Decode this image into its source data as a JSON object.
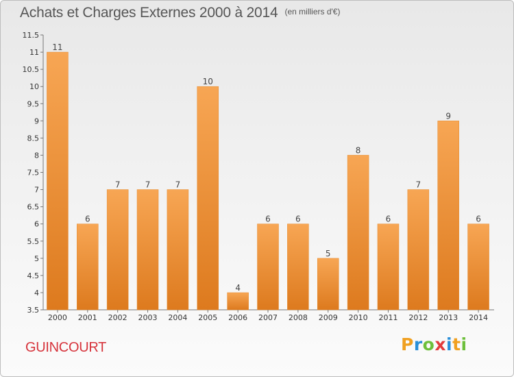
{
  "header": {
    "title": "Achats et Charges Externes 2000 à 2014",
    "subtitle": "(en milliers d'€)"
  },
  "footer": {
    "commune": "GUINCOURT",
    "logo_text": "Proxiti"
  },
  "colors": {
    "bar_top": "#f7a654",
    "bar_bottom": "#dd7a1e",
    "commune_text": "#d6333b"
  },
  "chart_data": {
    "type": "bar",
    "title": "Achats et Charges Externes 2000 à 2014",
    "subtitle": "(en milliers d'€)",
    "xlabel": "",
    "ylabel": "",
    "categories": [
      "2000",
      "2001",
      "2002",
      "2003",
      "2004",
      "2005",
      "2006",
      "2007",
      "2008",
      "2009",
      "2010",
      "2011",
      "2012",
      "2013",
      "2014"
    ],
    "values": [
      11,
      6,
      7,
      7,
      7,
      10,
      4,
      6,
      6,
      5,
      8,
      6,
      7,
      9,
      6
    ],
    "ylim": [
      3.5,
      11.5
    ],
    "yticks": [
      3.5,
      4,
      4.5,
      5,
      5.5,
      6,
      6.5,
      7,
      7.5,
      8,
      8.5,
      9,
      9.5,
      10,
      10.5,
      11,
      11.5
    ],
    "grid": false,
    "legend": "none"
  }
}
